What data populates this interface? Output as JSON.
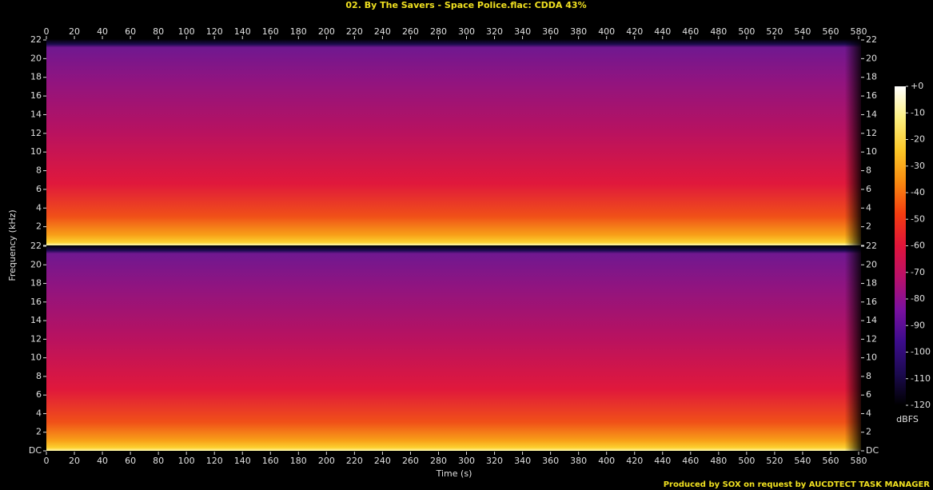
{
  "chart_data": {
    "type": "spectrogram",
    "title": "02. By The Savers - Space Police.flac: CDDA 43%",
    "x_label": "Time (s)",
    "y_label": "Frequency (kHz)",
    "xlim": [
      0,
      580
    ],
    "xticks": [
      0,
      20,
      40,
      60,
      80,
      100,
      120,
      140,
      160,
      180,
      200,
      220,
      240,
      260,
      280,
      300,
      320,
      340,
      360,
      380,
      400,
      420,
      440,
      460,
      480,
      500,
      520,
      540,
      560,
      580
    ],
    "ylim": [
      0,
      22
    ],
    "yticks": [
      {
        "value": 0,
        "label": "DC"
      },
      2,
      4,
      6,
      8,
      10,
      12,
      14,
      16,
      18,
      20,
      22
    ],
    "colorbar": {
      "label": "dBFS",
      "lim": [
        -120,
        0
      ],
      "ticks": [
        {
          "value": 0,
          "label": "+0"
        },
        -10,
        -20,
        -30,
        -40,
        -50,
        -60,
        -70,
        -80,
        -90,
        -100,
        -110,
        -120
      ],
      "colormap": [
        "#000000",
        "#1c0a50",
        "#3c0c8c",
        "#7a10a0",
        "#b8106a",
        "#e0143a",
        "#f43c10",
        "#f88a10",
        "#fcc828",
        "#fdf080",
        "#ffffff"
      ]
    },
    "footer": "Produced by SOX on request by AUCDTECT TASK MANAGER"
  }
}
